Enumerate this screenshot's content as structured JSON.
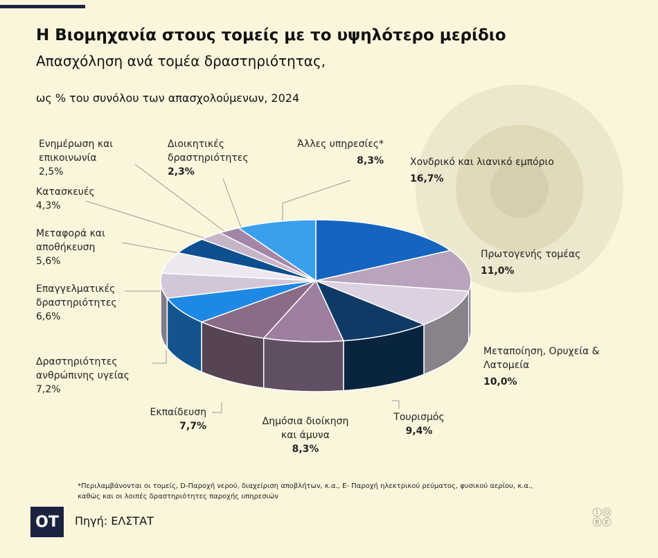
{
  "header": {
    "title": "Η Βιομηχανία στους τομείς με το υψηλότερο μερίδιο",
    "subtitle": "Απασχόληση ανά τομέα δραστηριότητας,",
    "subtitle2": "ως % του συνόλου των απασχολούμενων, 2024"
  },
  "chart_data": {
    "type": "pie",
    "title": "Η Βιομηχανία στους τομείς με το υψηλότερο μερίδιο",
    "subtitle": "Απασχόληση ανά τομέα δραστηριότητας, ως % του συνόλου των απασχολούμενων, 2024",
    "style": "3d-pie",
    "slices": [
      {
        "name": "Χονδρικό και λιανικό εμπόριο",
        "value": 16.7,
        "label": "16,7%",
        "color": "#1565c0"
      },
      {
        "name": "Πρωτογενής τομέας",
        "value": 11.0,
        "label": "11,0%",
        "color": "#b9a3bd"
      },
      {
        "name": "Μεταποίηση, Ορυχεία & Λατομεία",
        "value": 10.0,
        "label": "10,0%",
        "color": "#dcd1e0"
      },
      {
        "name": "Τουρισμός",
        "value": 9.4,
        "label": "9,4%",
        "color": "#0f3a66"
      },
      {
        "name": "Δημόσια διοίκηση και άμυνα",
        "value": 8.3,
        "label": "8,3%",
        "color": "#9d7fa0"
      },
      {
        "name": "Εκπαίδευση",
        "value": 7.7,
        "label": "7,7%",
        "color": "#8a6c86"
      },
      {
        "name": "Δραστηριότητες ανθρώπινης υγείας",
        "value": 7.2,
        "label": "7,2%",
        "color": "#1e88e5"
      },
      {
        "name": "Επαγγελματικές δραστηριότητες",
        "value": 6.6,
        "label": "6,6%",
        "color": "#d2c7d9"
      },
      {
        "name": "Μεταφορά και αποθήκευση",
        "value": 5.6,
        "label": "5,6%",
        "color": "#ede8ef"
      },
      {
        "name": "Κατασκευές",
        "value": 4.3,
        "label": "4,3%",
        "color": "#0e4f8f"
      },
      {
        "name": "Ενημέρωση και επικοινωνία",
        "value": 2.5,
        "label": "2,5%",
        "color": "#c6b5c8"
      },
      {
        "name": "Διοικητικές δραστηριότητες",
        "value": 2.3,
        "label": "2,3%",
        "color": "#a386a5"
      },
      {
        "name": "Άλλες υπηρεσίες*",
        "value": 8.3,
        "label": "8,3%",
        "color": "#3aa0ee"
      }
    ]
  },
  "labels": {
    "trade": {
      "name": "Χονδρικό και λιανικό εμπόριο",
      "pct": "16,7%"
    },
    "primary": {
      "name": "Πρωτογενής τομέας",
      "pct": "11,0%"
    },
    "manufacturing": {
      "line1": "Μεταποίηση, Ορυχεία &",
      "line2": "Λατομεία",
      "pct": "10,0%"
    },
    "tourism": {
      "name": "Τουρισμός",
      "pct": "9,4%"
    },
    "public": {
      "line1": "Δημόσια διοίκηση",
      "line2": "και άμυνα",
      "pct": "8,3%"
    },
    "education": {
      "name": "Εκπαίδευση",
      "pct": "7,7%"
    },
    "health": {
      "line1": "Δραστηριότητες",
      "line2": "ανθρώπινης υγείας",
      "pct": "7,2%"
    },
    "professional": {
      "line1": "Επαγγελματικές",
      "line2": "δραστηριότητες",
      "pct": "6,6%"
    },
    "transport": {
      "line1": "Μεταφορά και",
      "line2": "αποθήκευση",
      "pct": "5,6%"
    },
    "construction": {
      "name": "Κατασκευές",
      "pct": "4,3%"
    },
    "info": {
      "line1": "Ενημέρωση και",
      "line2": "επικοινωνία",
      "pct": "2,5%"
    },
    "admin": {
      "line1": "Διοικητικές",
      "line2": "δραστηριότητες",
      "pct": "2,3%"
    },
    "other": {
      "name": "Άλλες υπηρεσίες*",
      "pct": "8,3%"
    }
  },
  "footer": {
    "footnote_line1": "*Περιλαμβάνονται οι τομείς, D-Παροχή νερού, διαχείριση αποβλήτων, κ.α., E- Παροχή ηλεκτρικού ρεύματος, φυσικού αερίου, κ.α.,",
    "footnote_line2": "καθώς και οι λοιπές δραστηριότητες παροχής υπηρεσιών",
    "logo": "ΟΤ",
    "source": "Πηγή: ΕΛΣΤΑΤ",
    "iobe_logo_letters": [
      "Ι",
      "Ο",
      "Β",
      "Ε"
    ]
  }
}
